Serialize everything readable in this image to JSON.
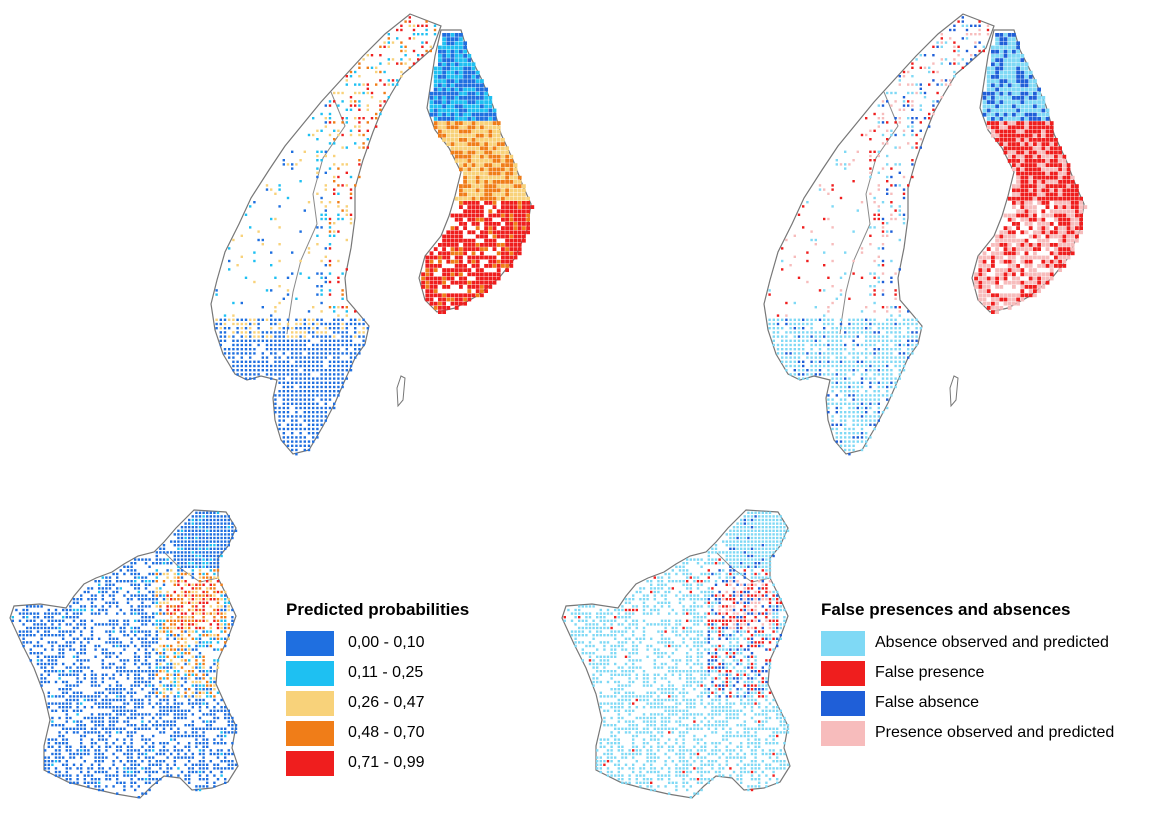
{
  "legend_probabilities": {
    "title": "Predicted probabilities",
    "items": [
      {
        "label": "0,00 - 0,10",
        "color": "#1f6fe0"
      },
      {
        "label": "0,11 - 0,25",
        "color": "#1ec0f2"
      },
      {
        "label": "0,26 - 0,47",
        "color": "#f8d27a"
      },
      {
        "label": "0,48 - 0,70",
        "color": "#f07d18"
      },
      {
        "label": "0,71 - 0,99",
        "color": "#ef1e1e"
      }
    ]
  },
  "legend_errors": {
    "title": "False presences and absences",
    "items": [
      {
        "label": "Absence observed and predicted",
        "color": "#7fd9f5"
      },
      {
        "label": "False presence",
        "color": "#ef1e1e"
      },
      {
        "label": "False absence",
        "color": "#1f5fd8"
      },
      {
        "label": "Presence observed and predicted",
        "color": "#f7bcbc"
      }
    ]
  },
  "maps": [
    {
      "region": "scandinavia",
      "layer": "predicted-probabilities"
    },
    {
      "region": "scandinavia",
      "layer": "false-presences-and-absences"
    },
    {
      "region": "france-benelux",
      "layer": "predicted-probabilities"
    },
    {
      "region": "france-benelux",
      "layer": "false-presences-and-absences"
    }
  ],
  "colors": {
    "land": "#ffffff",
    "border": "#8a8a8a",
    "coast": "#777777"
  }
}
